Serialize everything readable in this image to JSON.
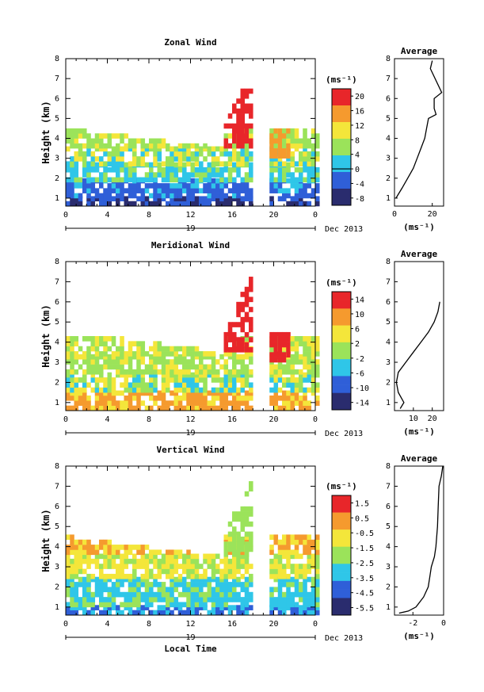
{
  "figure": {
    "colors": {
      "red": "#e8262a",
      "orange": "#f59a2e",
      "yellow": "#f4e63a",
      "lime": "#9be35a",
      "cyan": "#2fc6e8",
      "blue": "#2f5fd8",
      "navy": "#2a2c6e"
    }
  },
  "chart_data": [
    {
      "type": "heatmap",
      "title": "Zonal Wind",
      "ylabel": "Height (km)",
      "yticks": [
        "1",
        "2",
        "3",
        "4",
        "5",
        "6",
        "7",
        "8"
      ],
      "xticks": [
        "0",
        "4",
        "8",
        "12",
        "16",
        "20",
        "0"
      ],
      "date_mark": "19",
      "date_label": "Dec 2013",
      "ylim": [
        0.6,
        8
      ],
      "xlim": [
        0,
        24
      ],
      "data_gap_hours": [
        18,
        19.5
      ],
      "colorbar": {
        "unit": "(ms⁻¹)",
        "ticks": [
          "20",
          "16",
          "12",
          "8",
          "4",
          "0",
          "-4",
          "-8"
        ],
        "zero_line_at": "0"
      },
      "profile": {
        "title": "Average",
        "xticks": [
          "0",
          "20"
        ],
        "xlabel": "(ms⁻¹)",
        "xlim": [
          0,
          26
        ],
        "points": [
          [
            1,
            0.8
          ],
          [
            1.5,
            4
          ],
          [
            2,
            7
          ],
          [
            2.5,
            10
          ],
          [
            3,
            12
          ],
          [
            3.5,
            14
          ],
          [
            4,
            16
          ],
          [
            4.5,
            17
          ],
          [
            5,
            18
          ],
          [
            5.2,
            22
          ],
          [
            5.5,
            21
          ],
          [
            6,
            21
          ],
          [
            6.3,
            25
          ],
          [
            7.5,
            19
          ],
          [
            7.7,
            19.5
          ],
          [
            7.9,
            20
          ]
        ]
      }
    },
    {
      "type": "heatmap",
      "title": "Meridional Wind",
      "ylabel": "Height (km)",
      "yticks": [
        "1",
        "2",
        "3",
        "4",
        "5",
        "6",
        "7",
        "8"
      ],
      "xticks": [
        "0",
        "4",
        "8",
        "12",
        "16",
        "20",
        "0"
      ],
      "date_mark": "19",
      "date_label": "Dec 2013",
      "ylim": [
        0.6,
        8
      ],
      "xlim": [
        0,
        24
      ],
      "data_gap_hours": [
        18,
        19.5
      ],
      "colorbar": {
        "unit": "(ms⁻¹)",
        "ticks": [
          "14",
          "10",
          "6",
          "2",
          "-2",
          "-6",
          "-10",
          "-14"
        ],
        "zero_line_at": "0"
      },
      "profile": {
        "title": "Average",
        "xticks": [
          "10",
          "20"
        ],
        "xlabel": "(ms⁻¹)",
        "xlim": [
          0,
          26
        ],
        "points": [
          [
            0.7,
            3
          ],
          [
            1,
            5
          ],
          [
            1.5,
            2
          ],
          [
            2,
            1
          ],
          [
            2.5,
            2
          ],
          [
            3,
            6
          ],
          [
            3.5,
            10
          ],
          [
            4,
            14
          ],
          [
            4.5,
            18
          ],
          [
            5,
            21
          ],
          [
            5.5,
            23
          ],
          [
            6,
            24
          ]
        ]
      }
    },
    {
      "type": "heatmap",
      "title": "Vertical Wind",
      "ylabel": "Height (km)",
      "xlabel": "Local Time",
      "yticks": [
        "1",
        "2",
        "3",
        "4",
        "5",
        "6",
        "7",
        "8"
      ],
      "xticks": [
        "0",
        "4",
        "8",
        "12",
        "16",
        "20",
        "0"
      ],
      "date_mark": "19",
      "date_label": "Dec 2013",
      "ylim": [
        0.6,
        8
      ],
      "xlim": [
        0,
        24
      ],
      "data_gap_hours": [
        18,
        19.5
      ],
      "colorbar": {
        "unit": "(ms⁻¹)",
        "ticks": [
          "1.5",
          "0.5",
          "-0.5",
          "-1.5",
          "-2.5",
          "-3.5",
          "-4.5",
          "-5.5"
        ]
      },
      "profile": {
        "title": "Average",
        "xticks": [
          "-2",
          "0"
        ],
        "xlabel": "(ms⁻¹)",
        "xlim": [
          -3.2,
          0
        ],
        "points": [
          [
            0.7,
            -2.9
          ],
          [
            0.8,
            -2.3
          ],
          [
            1,
            -1.8
          ],
          [
            1.5,
            -1.3
          ],
          [
            2,
            -1
          ],
          [
            2.5,
            -0.9
          ],
          [
            3,
            -0.8
          ],
          [
            3.5,
            -0.6
          ],
          [
            4,
            -0.5
          ],
          [
            5,
            -0.4
          ],
          [
            6,
            -0.35
          ],
          [
            7,
            -0.3
          ],
          [
            7.5,
            -0.15
          ],
          [
            8,
            -0.05
          ]
        ]
      }
    }
  ]
}
